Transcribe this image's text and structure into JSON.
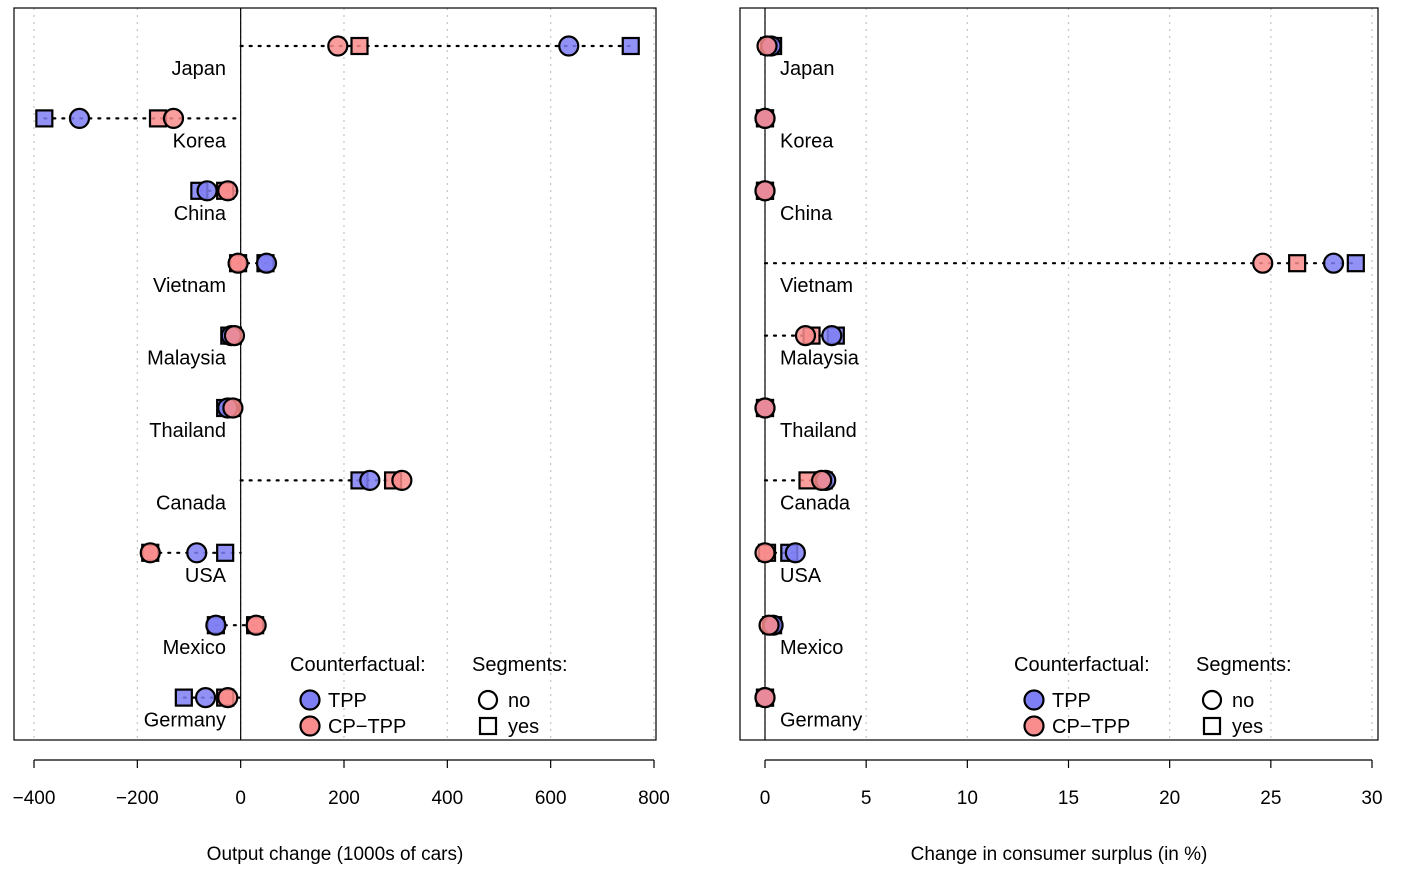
{
  "legend": {
    "counterfactual_title": "Counterfactual:",
    "segments_title": "Segments:",
    "tpp_label": "TPP",
    "cptpp_label": "CP−TPP",
    "no_label": "no",
    "yes_label": "yes"
  },
  "colors": {
    "tpp": "#7f7ff5",
    "cptpp": "#f98c8c",
    "outline": "#000000",
    "grid": "#c8c8c8"
  },
  "chart_data": [
    {
      "type": "scatter",
      "title": "",
      "xlabel": "Output change (1000s of cars)",
      "ylabel": "",
      "xlim": [
        -400,
        800
      ],
      "xticks": [
        -400,
        -200,
        0,
        200,
        400,
        600,
        800
      ],
      "xtick_labels": [
        "−400",
        "−200",
        "0",
        "200",
        "400",
        "600",
        "800"
      ],
      "grid": "vertical dotted",
      "legend_position": "bottom-right",
      "categories": [
        "Japan",
        "Korea",
        "China",
        "Vietnam",
        "Malaysia",
        "Thailand",
        "Canada",
        "USA",
        "Mexico",
        "Germany"
      ],
      "series": [
        {
          "name": "TPP",
          "marker": "circle",
          "segments": "no",
          "values": [
            635,
            -312,
            -65,
            50,
            -18,
            -25,
            250,
            -85,
            -48,
            -68
          ]
        },
        {
          "name": "TPP",
          "marker": "square",
          "segments": "yes",
          "values": [
            755,
            -380,
            -80,
            48,
            -22,
            -30,
            230,
            -30,
            -48,
            -110
          ]
        },
        {
          "name": "CP−TPP",
          "marker": "circle",
          "segments": "no",
          "values": [
            188,
            -130,
            -25,
            -5,
            -12,
            -15,
            312,
            -175,
            30,
            -25
          ]
        },
        {
          "name": "CP−TPP",
          "marker": "square",
          "segments": "yes",
          "values": [
            230,
            -160,
            -30,
            -5,
            -15,
            -18,
            295,
            -175,
            28,
            -30
          ]
        }
      ]
    },
    {
      "type": "scatter",
      "title": "",
      "xlabel": "Change in consumer surplus (in %)",
      "ylabel": "",
      "xlim": [
        0,
        30
      ],
      "xticks": [
        0,
        5,
        10,
        15,
        20,
        25,
        30
      ],
      "xtick_labels": [
        "0",
        "5",
        "10",
        "15",
        "20",
        "25",
        "30"
      ],
      "grid": "vertical dotted",
      "legend_position": "bottom-right",
      "categories": [
        "Japan",
        "Korea",
        "China",
        "Vietnam",
        "Malaysia",
        "Thailand",
        "Canada",
        "USA",
        "Mexico",
        "Germany"
      ],
      "series": [
        {
          "name": "TPP",
          "marker": "circle",
          "segments": "no",
          "values": [
            0.3,
            0.0,
            0.0,
            28.1,
            3.3,
            0.0,
            3.0,
            1.5,
            0.4,
            0.0
          ]
        },
        {
          "name": "TPP",
          "marker": "square",
          "segments": "yes",
          "values": [
            0.4,
            0.0,
            0.0,
            29.2,
            3.5,
            0.0,
            2.9,
            1.2,
            0.4,
            0.0
          ]
        },
        {
          "name": "CP−TPP",
          "marker": "circle",
          "segments": "no",
          "values": [
            0.1,
            0.0,
            0.0,
            24.6,
            2.0,
            0.0,
            2.8,
            0.0,
            0.2,
            0.0
          ]
        },
        {
          "name": "CP−TPP",
          "marker": "square",
          "segments": "yes",
          "values": [
            0.2,
            0.0,
            0.0,
            26.3,
            2.3,
            0.0,
            2.1,
            0.1,
            0.3,
            0.0
          ]
        }
      ]
    }
  ]
}
